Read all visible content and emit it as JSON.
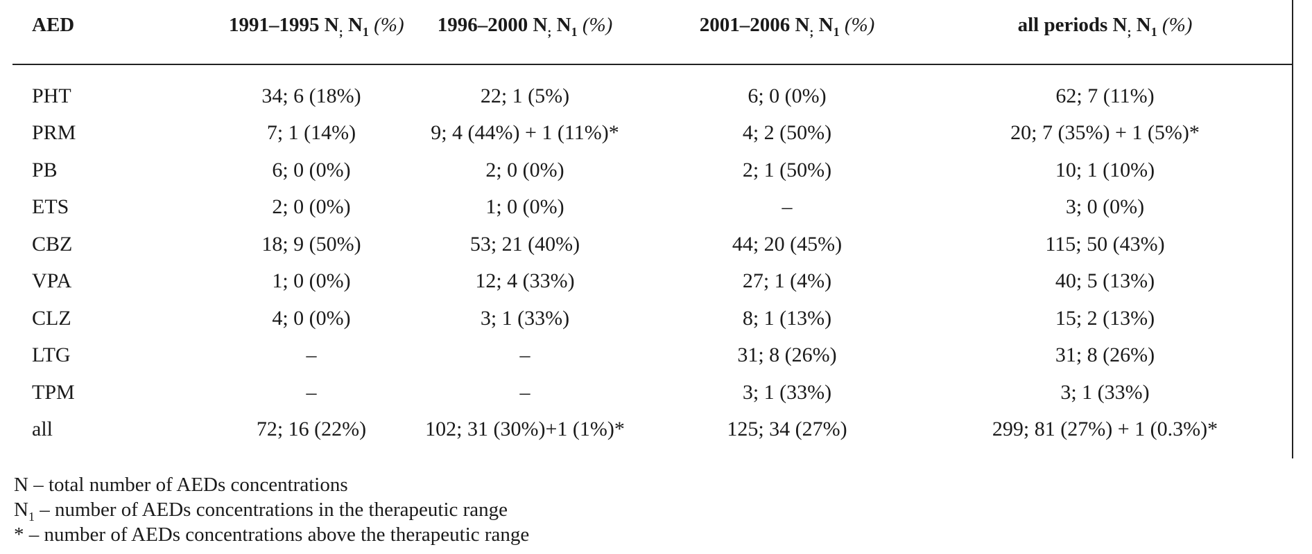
{
  "table": {
    "headers": [
      {
        "label": "AED",
        "main": "AED",
        "n": "",
        "n1": "",
        "sub": "",
        "pct": ""
      },
      {
        "label": "1991–1995 N; N1 (%)",
        "main": "1991–1995 N",
        "n1": " N",
        "sub": "1",
        "pct": "(%)"
      },
      {
        "label": "1996–2000 N; N1 (%)",
        "main": "1996–2000 N",
        "n1": " N",
        "sub": "1",
        "pct": "(%)"
      },
      {
        "label": "2001–2006 N; N1 (%)",
        "main": "2001–2006 N",
        "n1": " N",
        "sub": "1",
        "pct": "(%)"
      },
      {
        "label": "all periods N; N1 (%)",
        "main": "all periods N",
        "n1": " N",
        "sub": "1",
        "pct": "(%)"
      }
    ],
    "rows": [
      {
        "aed": "PHT",
        "p1": "34; 6 (18%)",
        "p2": "22; 1 (5%)",
        "p3": "6; 0 (0%)",
        "all": "62; 7 (11%)"
      },
      {
        "aed": "PRM",
        "p1": "7; 1 (14%)",
        "p2": "9; 4 (44%) + 1 (11%)*",
        "p3": "4; 2 (50%)",
        "all": "20; 7 (35%) + 1 (5%)*"
      },
      {
        "aed": "PB",
        "p1": "6; 0 (0%)",
        "p2": "2; 0 (0%)",
        "p3": "2; 1 (50%)",
        "all": "10; 1 (10%)"
      },
      {
        "aed": "ETS",
        "p1": "2; 0 (0%)",
        "p2": "1; 0 (0%)",
        "p3": "–",
        "all": "3; 0 (0%)"
      },
      {
        "aed": "CBZ",
        "p1": "18; 9 (50%)",
        "p2": "53; 21 (40%)",
        "p3": "44; 20 (45%)",
        "all": "115; 50 (43%)"
      },
      {
        "aed": "VPA",
        "p1": "1; 0 (0%)",
        "p2": "12; 4 (33%)",
        "p3": "27; 1 (4%)",
        "all": "40; 5 (13%)"
      },
      {
        "aed": "CLZ",
        "p1": "4; 0 (0%)",
        "p2": "3; 1 (33%)",
        "p3": "8; 1 (13%)",
        "all": "15; 2 (13%)"
      },
      {
        "aed": "LTG",
        "p1": "–",
        "p2": "–",
        "p3": "31; 8 (26%)",
        "all": "31; 8 (26%)"
      },
      {
        "aed": "TPM",
        "p1": "–",
        "p2": "–",
        "p3": "3; 1 (33%)",
        "all": "3; 1 (33%)"
      },
      {
        "aed": "all",
        "p1": "72; 16 (22%)",
        "p2": "102; 31 (30%)+1 (1%)*",
        "p3": "125; 34 (27%)",
        "all": "299; 81 (27%) + 1 (0.3%)*"
      }
    ]
  },
  "footnotes": {
    "n_def": "N – total number of AEDs concentrations",
    "n1_prefix": "N",
    "n1_sub": "1",
    "n1_def": " – number of AEDs concentrations in the therapeutic range",
    "star_def": "* – number of AEDs concentrations above the therapeutic range"
  }
}
